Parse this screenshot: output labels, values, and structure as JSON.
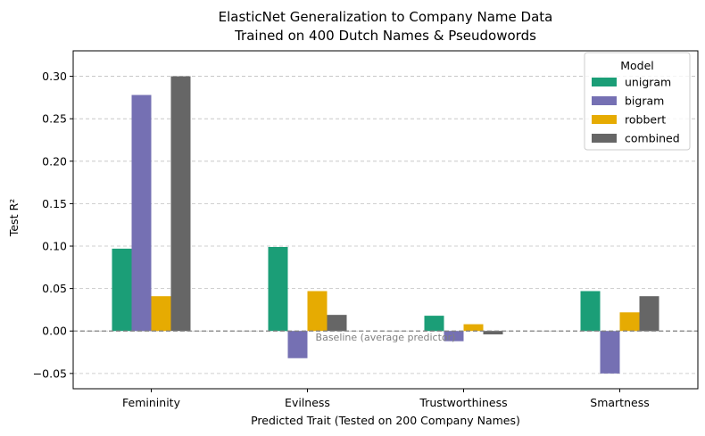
{
  "chart_data": {
    "type": "bar",
    "title_line1": "ElasticNet Generalization to Company Name Data",
    "title_line2": "Trained on 400 Dutch Names & Pseudowords",
    "xlabel": "Predicted Trait (Tested on 200 Company Names)",
    "ylabel": "Test R²",
    "categories": [
      "Femininity",
      "Evilness",
      "Trustworthiness",
      "Smartness"
    ],
    "ylim": [
      -0.068,
      0.33
    ],
    "yticks": [
      -0.05,
      0.0,
      0.05,
      0.1,
      0.15,
      0.2,
      0.25,
      0.3
    ],
    "ytick_labels": [
      "−0.05",
      "0.00",
      "0.05",
      "0.10",
      "0.15",
      "0.20",
      "0.25",
      "0.30"
    ],
    "grid": "y-dashed",
    "legend_title": "Model",
    "legend_position": "top-right",
    "series": [
      {
        "name": "unigram",
        "color": "#1b9e77",
        "values": [
          0.097,
          0.099,
          0.018,
          0.047
        ]
      },
      {
        "name": "bigram",
        "color": "#7570b3",
        "values": [
          0.278,
          -0.032,
          -0.012,
          -0.05
        ]
      },
      {
        "name": "robbert",
        "color": "#e6ab02",
        "values": [
          0.041,
          0.047,
          0.008,
          0.022
        ]
      },
      {
        "name": "combined",
        "color": "#666666",
        "values": [
          0.3,
          0.019,
          -0.004,
          0.041
        ]
      }
    ],
    "baseline": {
      "value": 0.0,
      "label": "Baseline (average predictor)",
      "color": "#808080"
    }
  }
}
